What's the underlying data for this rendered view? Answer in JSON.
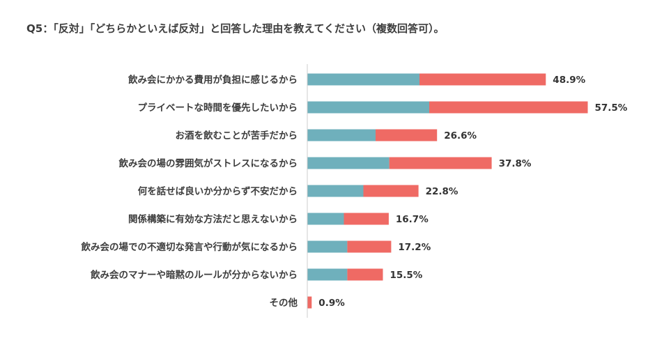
{
  "title": "Q5：「反対」「どちらかといえば反対」と回答した理由を教えてください（複数回答可）。",
  "colors": {
    "series_a": "#6fb0bc",
    "series_b": "#ef6a64",
    "axis": "#cccccc"
  },
  "chart_data": {
    "type": "bar",
    "orientation": "horizontal",
    "stacked": true,
    "categories": [
      "飲み会にかかる費用が負担に感じるから",
      "プライベートな時間を優先したいから",
      "お酒を飲むことが苦手だから",
      "飲み会の場の雰囲気がストレスになるから",
      "何を話せば良いか分からず不安だから",
      "関係構築に有効な方法だと思えないから",
      "飲み会の場での不適切な発言や行動が気になるから",
      "飲み会のマナーや暗黙のルールが分からないから",
      "その他"
    ],
    "totals": [
      48.9,
      57.5,
      26.6,
      37.8,
      22.8,
      16.7,
      17.2,
      15.5,
      0.9
    ],
    "total_labels": [
      "48.9%",
      "57.5%",
      "26.6%",
      "37.8%",
      "22.8%",
      "16.7%",
      "17.2%",
      "15.5%",
      "0.9%"
    ],
    "series": [
      {
        "values": [
          23.0,
          25.0,
          14.0,
          16.8,
          11.5,
          7.5,
          8.2,
          8.2,
          0.0
        ]
      },
      {
        "values": [
          25.9,
          32.5,
          12.6,
          21.0,
          11.3,
          9.2,
          9.0,
          7.3,
          0.9
        ]
      }
    ],
    "xlim": [
      0,
      60
    ],
    "grid": false,
    "legend": "none"
  }
}
